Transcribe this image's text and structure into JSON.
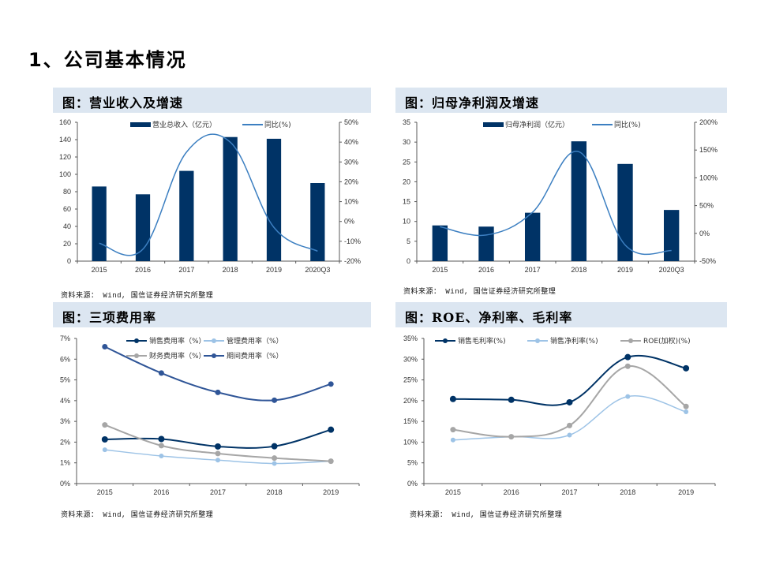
{
  "page": {
    "title": "1、公司基本情况",
    "source_note": "资料来源： Wind, 国信证券经济研究所整理"
  },
  "panels": [
    {
      "title": "图：营业收入及增速"
    },
    {
      "title": "图：归母净利润及增速"
    },
    {
      "title": "图：三项费用率"
    },
    {
      "title": "图：ROE、净利率、毛利率"
    }
  ],
  "colors": {
    "navy": "#003366",
    "line_blue": "#3c7fc1",
    "light_blue": "#9dc3e6",
    "gray": "#a6a6a6",
    "mid_blue": "#2f5597",
    "band": "#dce6f1"
  },
  "chart_data": [
    {
      "type": "bar+line",
      "title": "图：营业收入及增速",
      "categories": [
        "2015",
        "2016",
        "2017",
        "2018",
        "2019",
        "2020Q3"
      ],
      "series": [
        {
          "name": "营业总收入（亿元）",
          "type": "bar",
          "axis": "left",
          "values": [
            86,
            77,
            104,
            143,
            141,
            90
          ]
        },
        {
          "name": "同比(%)",
          "type": "line",
          "axis": "right",
          "values": [
            -11,
            -14,
            35,
            40,
            -3,
            -15
          ]
        }
      ],
      "ylim_left": [
        0,
        160
      ],
      "yticks_left": [
        0,
        20,
        40,
        60,
        80,
        100,
        120,
        140,
        160
      ],
      "ylim_right": [
        -20,
        50
      ],
      "yticks_right": [
        "-20%",
        "-10%",
        "0%",
        "10%",
        "20%",
        "30%",
        "40%",
        "50%"
      ],
      "legend_position": "top"
    },
    {
      "type": "bar+line",
      "title": "图：归母净利润及增速",
      "categories": [
        "2015",
        "2016",
        "2017",
        "2018",
        "2019",
        "2020Q3"
      ],
      "series": [
        {
          "name": "归母净利润（亿元）",
          "type": "bar",
          "axis": "left",
          "values": [
            9.0,
            8.7,
            12.2,
            30.2,
            24.5,
            12.9
          ]
        },
        {
          "name": "同比(%)",
          "type": "line",
          "axis": "right",
          "values": [
            12,
            -3,
            38,
            147,
            -21,
            -31
          ]
        }
      ],
      "ylim_left": [
        0,
        35
      ],
      "yticks_left": [
        0,
        5,
        10,
        15,
        20,
        25,
        30,
        35
      ],
      "ylim_right": [
        -50,
        200
      ],
      "yticks_right": [
        "-50%",
        "0%",
        "50%",
        "100%",
        "150%",
        "200%"
      ],
      "legend_position": "top"
    },
    {
      "type": "line",
      "title": "图：三项费用率",
      "categories": [
        "2015",
        "2016",
        "2017",
        "2018",
        "2019"
      ],
      "series": [
        {
          "name": "销售费用率（%）",
          "values": [
            2.13,
            2.15,
            1.79,
            1.8,
            2.6
          ]
        },
        {
          "name": "管理费用率（%）",
          "values": [
            1.63,
            1.33,
            1.13,
            0.97,
            1.08
          ]
        },
        {
          "name": "财务费用率（%）",
          "values": [
            2.83,
            1.83,
            1.45,
            1.23,
            1.08
          ]
        },
        {
          "name": "期间费用率（%）",
          "values": [
            6.6,
            5.33,
            4.4,
            4.02,
            4.8
          ]
        }
      ],
      "ylim": [
        0,
        7
      ],
      "yticks": [
        "0%",
        "1%",
        "2%",
        "3%",
        "4%",
        "5%",
        "6%",
        "7%"
      ],
      "legend_position": "top"
    },
    {
      "type": "line",
      "title": "图：ROE、净利率、毛利率",
      "categories": [
        "2015",
        "2016",
        "2017",
        "2018",
        "2019"
      ],
      "series": [
        {
          "name": "销售毛利率(%)",
          "values": [
            20.4,
            20.2,
            19.6,
            30.5,
            27.8
          ]
        },
        {
          "name": "销售净利率(%)",
          "values": [
            10.5,
            11.3,
            11.7,
            21.0,
            17.3
          ]
        },
        {
          "name": "ROE(加权)(%)",
          "values": [
            13.0,
            11.3,
            14.0,
            28.3,
            18.6
          ]
        }
      ],
      "ylim": [
        0,
        35
      ],
      "yticks": [
        "0%",
        "5%",
        "10%",
        "15%",
        "20%",
        "25%",
        "30%",
        "35%"
      ],
      "legend_position": "top"
    }
  ]
}
